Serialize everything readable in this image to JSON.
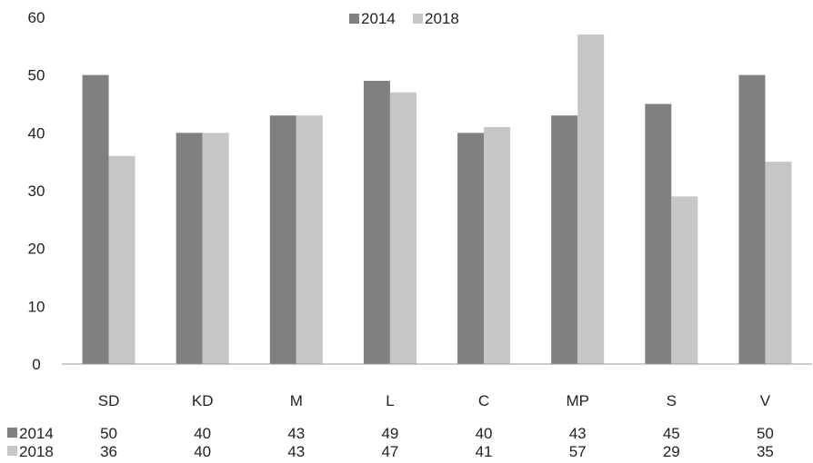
{
  "chart_data": {
    "type": "bar",
    "categories": [
      "SD",
      "KD",
      "M",
      "L",
      "C",
      "MP",
      "S",
      "V"
    ],
    "series": [
      {
        "name": "2014",
        "color": "#808083",
        "values": [
          50,
          40,
          43,
          49,
          40,
          43,
          45,
          50
        ]
      },
      {
        "name": "2018",
        "color": "#c6c6c8",
        "values": [
          36,
          40,
          43,
          47,
          41,
          57,
          29,
          35
        ]
      }
    ],
    "title": "",
    "xlabel": "",
    "ylabel": "",
    "ylim": [
      0,
      60
    ],
    "yticks": [
      0,
      10,
      20,
      30,
      40,
      50,
      60
    ],
    "grid": false,
    "legend": "top-center",
    "data_table": true
  }
}
